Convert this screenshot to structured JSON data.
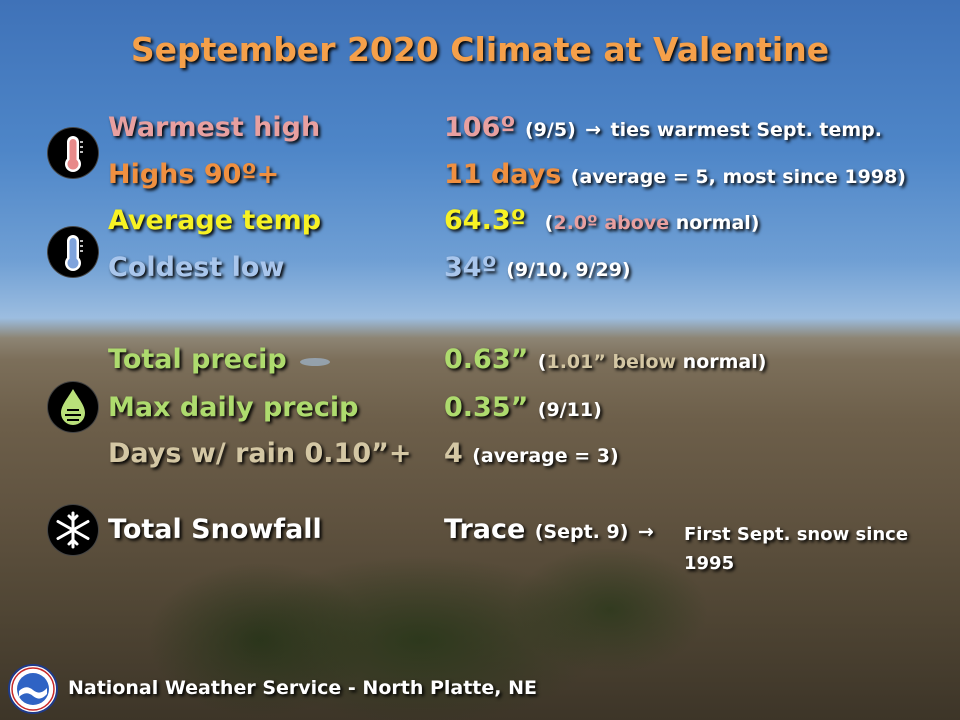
{
  "title": "September 2020 Climate at Valentine",
  "rows": {
    "warmest_high": {
      "label": "Warmest high",
      "value": "106º",
      "note": "(9/5)",
      "extra": "ties warmest Sept. temp."
    },
    "highs_90": {
      "label": "Highs 90º+",
      "value": "11 days",
      "note": "(average = 5, most since 1998)"
    },
    "avg_temp": {
      "label": "Average temp",
      "value": "64.3º",
      "note_open": "(",
      "note_colored": "2.0º above",
      "note_close": " normal)"
    },
    "coldest_low": {
      "label": "Coldest low",
      "value": "34º",
      "note": "(9/10, 9/29)"
    },
    "total_precip": {
      "label": "Total precip",
      "value": "0.63”",
      "note_open": "(",
      "note_colored": "1.01” below",
      "note_close": " normal)"
    },
    "max_daily_precip": {
      "label": "Max daily precip",
      "value": "0.35”",
      "note": "(9/11)"
    },
    "days_rain": {
      "label": "Days w/ rain 0.10”+",
      "value": "4",
      "note": "(average =  3)"
    },
    "snowfall": {
      "label": "Total Snowfall",
      "value": "Trace",
      "note": "(Sept. 9)",
      "extra_line1": "First Sept. snow since",
      "extra_line2": "1995"
    }
  },
  "footer": {
    "text": "National Weather Service   -   North Platte, NE"
  },
  "colors": {
    "title": "#f5a04a",
    "warm": "#e8a0a0",
    "orange": "#f09040",
    "yellow": "#f7f224",
    "cold": "#a9c6ec",
    "precip": "#aedb6e"
  },
  "icons": [
    "thermometer-hot-icon",
    "thermometer-cold-icon",
    "water-drop-icon",
    "snowflake-icon",
    "noaa-logo"
  ]
}
